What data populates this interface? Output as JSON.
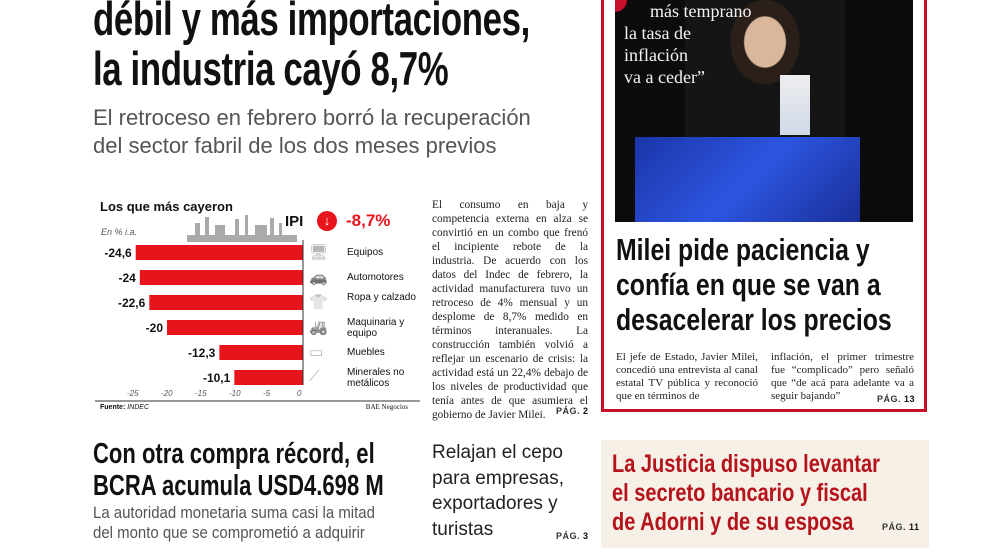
{
  "lead": {
    "headline_lines": [
      "débil y más importaciones,",
      "la industria cayó 8,7%"
    ],
    "subhead_lines": [
      "El retroceso en febrero borró la recuperación",
      "del sector fabril de los dos meses previos"
    ],
    "body": "El consumo en baja y competencia externa en alza se convirtió en un combo que frenó el incipiente rebote de la industria. De acuerdo con los datos del Indec de febrero, la actividad manufacturera tuvo un retroceso de 4% mensual y un desplome de 8,7% medido en términos interanuales. La construcción también volvió a reflejar un escenario de crisis: la actividad está un 22,4% debajo de los niveles de productividad que tenía antes de que asumiera el gobierno de Javier Milei.",
    "page_label": "PÁG.",
    "page_num": "2"
  },
  "chart_data": {
    "type": "bar",
    "orientation": "horizontal",
    "title": "Los que más cayeron",
    "unit_label": "En % i.a.",
    "headline_label": "IPI",
    "headline_value": "-8,7%",
    "categories": [
      "Equipos",
      "Automotores",
      "Ropa y calzado",
      "Maquinaria y equipo",
      "Muebles",
      "Minerales no metálicos"
    ],
    "icons": [
      "computer-icon",
      "car-icon",
      "clothing-icon",
      "tractor-icon",
      "table-icon",
      "minerals-icon"
    ],
    "values": [
      -24.6,
      -24,
      -22.6,
      -20,
      -12.3,
      -10.1
    ],
    "value_labels": [
      "-24,6",
      "-24",
      "-22,6",
      "-20",
      "-12,3",
      "-10,1"
    ],
    "xlim": [
      -25,
      0
    ],
    "xticks": [
      "-25",
      "-20",
      "-15",
      "-10",
      "-5",
      "0"
    ],
    "bar_color": "#e8141c",
    "source_label": "Fuente:",
    "source": "INDEC",
    "credit": "BAE Negocios"
  },
  "milei": {
    "quote_lines": [
      "más temprano",
      "la tasa de",
      "inflación",
      "va a ceder”"
    ],
    "headline_lines": [
      "Milei pide paciencia y",
      "confía en que se van a",
      "desacelerar los precios"
    ],
    "col1": "El jefe de Estado, Javier Milei, concedió una entrevista al canal estatal TV pública y reconoció que en términos de",
    "col2": "inflación, el primer trimestre fue “complicado” pero señaló que “de acá para adelante va a seguir bajando”",
    "page_label": "PÁG.",
    "page_num": "13"
  },
  "bcra": {
    "headline_lines": [
      "Con otra compra récord, el",
      "BCRA acumula USD4.698 M"
    ],
    "subhead_lines": [
      "La autoridad monetaria suma casi la mitad",
      "del monto que se comprometió a adquirir"
    ]
  },
  "cepo": {
    "headline_lines": [
      "Relajan el cepo",
      "para empresas,",
      "exportadores y",
      "turistas"
    ],
    "page_label": "PÁG.",
    "page_num": "3"
  },
  "justicia": {
    "headline_lines": [
      "La Justicia dispuso levantar",
      "el secreto bancario y fiscal",
      "de Adorni y de su esposa"
    ],
    "page_label": "PÁG.",
    "page_num": "11",
    "color": "#b5121b"
  }
}
